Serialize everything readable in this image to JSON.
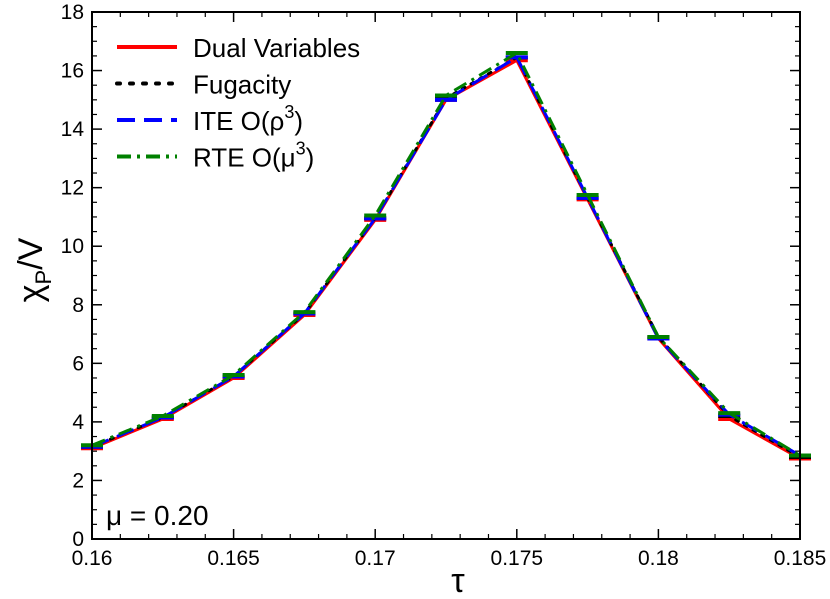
{
  "chart_data": {
    "type": "line",
    "xlabel": "τ",
    "ylabel": {
      "main": "χ",
      "sub": "P",
      "rest": "/V"
    },
    "xlim": [
      0.16,
      0.185
    ],
    "ylim": [
      0,
      18
    ],
    "xticks": [
      {
        "v": 0.16,
        "label": "0.16"
      },
      {
        "v": 0.165,
        "label": "0.165"
      },
      {
        "v": 0.17,
        "label": "0.17"
      },
      {
        "v": 0.175,
        "label": "0.175"
      },
      {
        "v": 0.18,
        "label": "0.18"
      },
      {
        "v": 0.185,
        "label": "0.185"
      }
    ],
    "yticks": [
      {
        "v": 0,
        "label": "0"
      },
      {
        "v": 2,
        "label": "2"
      },
      {
        "v": 4,
        "label": "4"
      },
      {
        "v": 6,
        "label": "6"
      },
      {
        "v": 8,
        "label": "8"
      },
      {
        "v": 10,
        "label": "10"
      },
      {
        "v": 12,
        "label": "12"
      },
      {
        "v": 14,
        "label": "14"
      },
      {
        "v": 16,
        "label": "16"
      },
      {
        "v": 18,
        "label": "18"
      }
    ],
    "annotation": "μ = 0.20",
    "legend_position": "top-left",
    "series": [
      {
        "name": "Dual Variables",
        "color": "#ff0000",
        "dash": "solid",
        "x": [
          0.16,
          0.1625,
          0.165,
          0.1675,
          0.17,
          0.1725,
          0.175,
          0.1775,
          0.18,
          0.1825,
          0.185
        ],
        "y": [
          3.1,
          4.1,
          5.5,
          7.65,
          10.9,
          15.0,
          16.35,
          11.6,
          6.85,
          4.1,
          2.75
        ]
      },
      {
        "name": "Fugacity",
        "color": "#000000",
        "dash": "dotted",
        "x": [
          0.16,
          0.1625,
          0.165,
          0.1675,
          0.17,
          0.1725,
          0.175,
          0.1775,
          0.18,
          0.1825,
          0.185
        ],
        "y": [
          3.15,
          4.15,
          5.55,
          7.7,
          10.95,
          15.05,
          16.45,
          11.65,
          6.9,
          4.2,
          2.8
        ]
      },
      {
        "name": "ITE O(ρ3)",
        "label_parts": [
          "ITE O(ρ",
          "3",
          ")"
        ],
        "color": "#0000ff",
        "dash": "dashed",
        "x": [
          0.16,
          0.1625,
          0.165,
          0.1675,
          0.17,
          0.1725,
          0.175,
          0.1775,
          0.18,
          0.1825,
          0.185
        ],
        "y": [
          3.15,
          4.15,
          5.55,
          7.7,
          10.95,
          15.0,
          16.45,
          11.65,
          6.85,
          4.25,
          2.85
        ]
      },
      {
        "name": "RTE O(μ3)",
        "label_parts": [
          "RTE O(μ",
          "3",
          ")"
        ],
        "color": "#008000",
        "dash": "dashdot",
        "x": [
          0.16,
          0.1625,
          0.165,
          0.1675,
          0.17,
          0.1725,
          0.175,
          0.1775,
          0.18,
          0.1825,
          0.185
        ],
        "y": [
          3.2,
          4.2,
          5.6,
          7.75,
          11.05,
          15.15,
          16.6,
          11.75,
          6.9,
          4.3,
          2.85
        ]
      }
    ]
  }
}
